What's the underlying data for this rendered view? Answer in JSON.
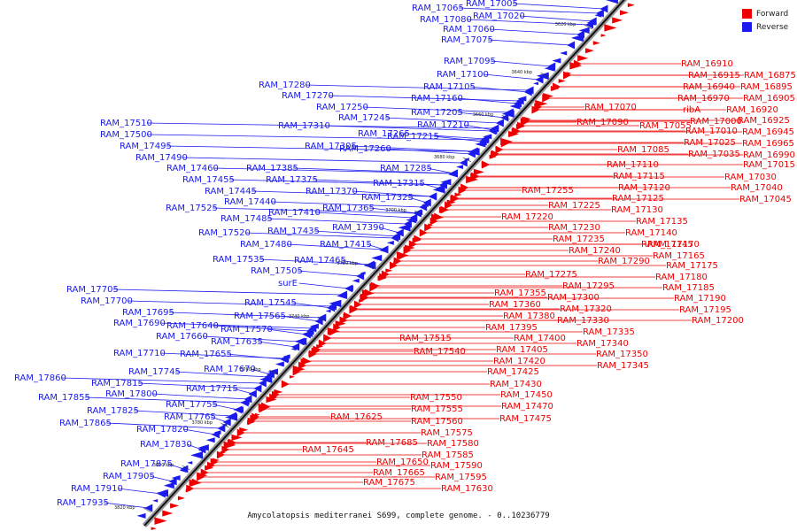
{
  "legend": {
    "forward_label": "Forward",
    "reverse_label": "Reverse",
    "forward_color": "#ee0000",
    "reverse_color": "#1a1aee"
  },
  "caption": "Amycolatopsis mediterranei S699, complete genome. - 0..10236779",
  "ticks": [
    "3620 kbp",
    "3640 kbp",
    "3660 kbp",
    "3680 kbp",
    "3700 kbp",
    "3720 kbp",
    "3740 kbp",
    "3760 kbp",
    "3780 kbp",
    "3800 kbp",
    "3820 kbp"
  ],
  "forward_genes": [
    "RAM_16910",
    "RAM_16915",
    "RAM_16940",
    "RAM_16970",
    "RAM_17000",
    "RAM_17010",
    "RAM_17025",
    "RAM_17035",
    "RAM_17030",
    "RAM_17040",
    "RAM_17045",
    "RAM_16875",
    "RAM_16895",
    "RAM_16905",
    "RAM_16920",
    "RAM_16925",
    "RAM_16945",
    "RAM_16965",
    "RAM_16990",
    "RAM_17015",
    "RAM_17070",
    "RAM_17090",
    "RAM_17055",
    "ribA",
    "RAM_17085",
    "RAM_17110",
    "RAM_17115",
    "RAM_17120",
    "RAM_17125",
    "RAM_17130",
    "RAM_17135",
    "RAM_17140",
    "RAM_17145",
    "RAM_17165",
    "RAM_17170",
    "RAM_17175",
    "RAM_17180",
    "RAM_17185",
    "RAM_17190",
    "RAM_17195",
    "RAM_17200",
    "RAM_17255",
    "RAM_17220",
    "RAM_17225",
    "RAM_17230",
    "RAM_17235",
    "RAM_17240",
    "RAM_17290",
    "RAM_17275",
    "RAM_17295",
    "RAM_17300",
    "RAM_17320",
    "RAM_17330",
    "RAM_17335",
    "RAM_17340",
    "RAM_17350",
    "RAM_17345",
    "RAM_17355",
    "RAM_17360",
    "RAM_17380",
    "RAM_17395",
    "RAM_17400",
    "RAM_17405",
    "RAM_17420",
    "RAM_17425",
    "RAM_17430",
    "RAM_17450",
    "RAM_17470",
    "RAM_17475",
    "RAM_17515",
    "RAM_17540",
    "RAM_17550",
    "RAM_17555",
    "RAM_17560",
    "RAM_17575",
    "RAM_17580",
    "RAM_17585",
    "RAM_17590",
    "RAM_17595",
    "RAM_17630",
    "RAM_17625",
    "RAM_17685",
    "RAM_17645",
    "RAM_17650",
    "RAM_17665",
    "RAM_17675"
  ],
  "reverse_genes": [
    "RAM_17065",
    "RAM_17005",
    "RAM_17080",
    "RAM_17020",
    "RAM_17060",
    "RAM_17075",
    "RAM_17095",
    "RAM_17100",
    "RAM_17105",
    "RAM_17160",
    "RAM_17205",
    "RAM_17210",
    "RAM_17215",
    "RAM_17280",
    "RAM_17270",
    "RAM_17250",
    "RAM_17245",
    "RAM_17310",
    "RAM_17265",
    "RAM_17260",
    "RAM_17305",
    "RAM_17285",
    "RAM_17510",
    "RAM_17500",
    "RAM_17495",
    "RAM_17490",
    "RAM_17460",
    "RAM_17455",
    "RAM_17385",
    "RAM_17375",
    "RAM_17445",
    "RAM_17440",
    "RAM_17370",
    "RAM_17315",
    "RAM_17325",
    "RAM_17365",
    "RAM_17525",
    "RAM_17485",
    "RAM_17410",
    "RAM_17435",
    "RAM_17390",
    "RAM_17520",
    "RAM_17480",
    "RAM_17415",
    "RAM_17535",
    "RAM_17465",
    "RAM_17505",
    "surE",
    "RAM_17705",
    "RAM_17700",
    "RAM_17695",
    "RAM_17545",
    "RAM_17565",
    "RAM_17690",
    "RAM_17640",
    "RAM_17570",
    "RAM_17660",
    "RAM_17635",
    "RAM_17710",
    "RAM_17655",
    "RAM_17745",
    "RAM_17670",
    "RAM_17860",
    "RAM_17815",
    "RAM_17800",
    "RAM_17715",
    "RAM_17855",
    "RAM_17755",
    "RAM_17825",
    "RAM_17765",
    "RAM_17865",
    "RAM_17820",
    "RAM_17830",
    "RAM_17875",
    "RAM_17905",
    "RAM_17910",
    "RAM_17935"
  ]
}
